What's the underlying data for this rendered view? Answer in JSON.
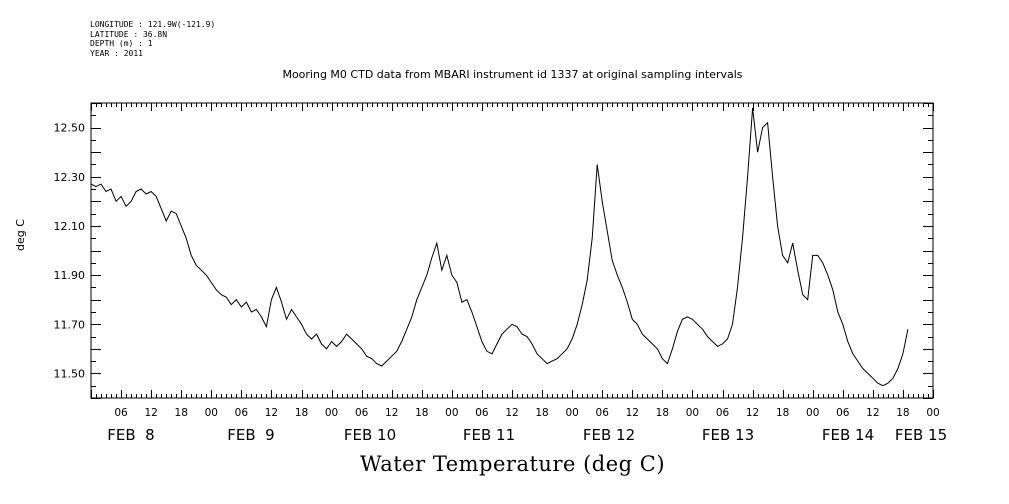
{
  "header": {
    "lines": [
      "LONGITUDE : 121.9W(-121.9)",
      "LATITUDE : 36.8N",
      "DEPTH (m) : 1",
      "YEAR : 2011"
    ]
  },
  "chart_data": {
    "type": "line",
    "title": "Mooring M0 CTD data from MBARI instrument id 1337 at original sampling intervals",
    "xlabel": "Water Temperature (deg C)",
    "ylabel": "deg C",
    "ylim": [
      11.4,
      12.6
    ],
    "xlim_hours": [
      0,
      168
    ],
    "grid": false,
    "y_ticks": [
      "11.50",
      "11.70",
      "11.90",
      "12.10",
      "12.30",
      "12.50"
    ],
    "x_hour_ticks": [
      "06",
      "12",
      "18",
      "00",
      "06",
      "12",
      "18",
      "00",
      "06",
      "12",
      "18",
      "00",
      "06",
      "12",
      "18",
      "00",
      "06",
      "12",
      "18",
      "00",
      "06",
      "12",
      "18",
      "00",
      "06",
      "12",
      "18",
      "00"
    ],
    "day_labels": [
      "FEB  8",
      "FEB  9",
      "FEB 10",
      "FEB 11",
      "FEB 12",
      "FEB 13",
      "FEB 14",
      "FEB 15"
    ],
    "series": [
      {
        "values": [
          [
            0,
            12.27
          ],
          [
            1,
            12.26
          ],
          [
            2,
            12.27
          ],
          [
            3,
            12.24
          ],
          [
            4,
            12.25
          ],
          [
            5,
            12.2
          ],
          [
            6,
            12.22
          ],
          [
            7,
            12.18
          ],
          [
            8,
            12.2
          ],
          [
            9,
            12.24
          ],
          [
            10,
            12.25
          ],
          [
            11,
            12.23
          ],
          [
            12,
            12.24
          ],
          [
            13,
            12.22
          ],
          [
            14,
            12.17
          ],
          [
            15,
            12.12
          ],
          [
            16,
            12.16
          ],
          [
            17,
            12.15
          ],
          [
            18,
            12.1
          ],
          [
            19,
            12.05
          ],
          [
            20,
            11.98
          ],
          [
            21,
            11.94
          ],
          [
            22,
            11.92
          ],
          [
            23,
            11.9
          ],
          [
            24,
            11.87
          ],
          [
            25,
            11.84
          ],
          [
            26,
            11.82
          ],
          [
            27,
            11.81
          ],
          [
            28,
            11.78
          ],
          [
            29,
            11.8
          ],
          [
            30,
            11.77
          ],
          [
            31,
            11.79
          ],
          [
            32,
            11.75
          ],
          [
            33,
            11.76
          ],
          [
            34,
            11.73
          ],
          [
            35,
            11.69
          ],
          [
            36,
            11.8
          ],
          [
            37,
            11.85
          ],
          [
            38,
            11.79
          ],
          [
            39,
            11.72
          ],
          [
            40,
            11.76
          ],
          [
            41,
            11.73
          ],
          [
            42,
            11.7
          ],
          [
            43,
            11.66
          ],
          [
            44,
            11.64
          ],
          [
            45,
            11.66
          ],
          [
            46,
            11.62
          ],
          [
            47,
            11.6
          ],
          [
            48,
            11.63
          ],
          [
            49,
            11.61
          ],
          [
            50,
            11.63
          ],
          [
            51,
            11.66
          ],
          [
            52,
            11.64
          ],
          [
            53,
            11.62
          ],
          [
            54,
            11.6
          ],
          [
            55,
            11.57
          ],
          [
            56,
            11.56
          ],
          [
            57,
            11.54
          ],
          [
            58,
            11.53
          ],
          [
            59,
            11.55
          ],
          [
            60,
            11.57
          ],
          [
            61,
            11.59
          ],
          [
            62,
            11.63
          ],
          [
            63,
            11.68
          ],
          [
            64,
            11.73
          ],
          [
            65,
            11.8
          ],
          [
            66,
            11.85
          ],
          [
            67,
            11.9
          ],
          [
            68,
            11.97
          ],
          [
            69,
            12.03
          ],
          [
            70,
            11.92
          ],
          [
            71,
            11.98
          ],
          [
            72,
            11.9
          ],
          [
            73,
            11.87
          ],
          [
            74,
            11.79
          ],
          [
            75,
            11.8
          ],
          [
            76,
            11.75
          ],
          [
            77,
            11.69
          ],
          [
            78,
            11.63
          ],
          [
            79,
            11.59
          ],
          [
            80,
            11.58
          ],
          [
            81,
            11.62
          ],
          [
            82,
            11.66
          ],
          [
            83,
            11.68
          ],
          [
            84,
            11.7
          ],
          [
            85,
            11.69
          ],
          [
            86,
            11.66
          ],
          [
            87,
            11.65
          ],
          [
            88,
            11.62
          ],
          [
            89,
            11.58
          ],
          [
            90,
            11.56
          ],
          [
            91,
            11.54
          ],
          [
            92,
            11.55
          ],
          [
            93,
            11.56
          ],
          [
            94,
            11.58
          ],
          [
            95,
            11.6
          ],
          [
            96,
            11.64
          ],
          [
            97,
            11.7
          ],
          [
            98,
            11.78
          ],
          [
            99,
            11.88
          ],
          [
            100,
            12.05
          ],
          [
            101,
            12.35
          ],
          [
            102,
            12.2
          ],
          [
            103,
            12.08
          ],
          [
            104,
            11.96
          ],
          [
            105,
            11.9
          ],
          [
            106,
            11.85
          ],
          [
            107,
            11.79
          ],
          [
            108,
            11.72
          ],
          [
            109,
            11.7
          ],
          [
            110,
            11.66
          ],
          [
            111,
            11.64
          ],
          [
            112,
            11.62
          ],
          [
            113,
            11.6
          ],
          [
            114,
            11.56
          ],
          [
            115,
            11.54
          ],
          [
            116,
            11.6
          ],
          [
            117,
            11.67
          ],
          [
            118,
            11.72
          ],
          [
            119,
            11.73
          ],
          [
            120,
            11.72
          ],
          [
            121,
            11.7
          ],
          [
            122,
            11.68
          ],
          [
            123,
            11.65
          ],
          [
            124,
            11.63
          ],
          [
            125,
            11.61
          ],
          [
            126,
            11.62
          ],
          [
            127,
            11.64
          ],
          [
            128,
            11.7
          ],
          [
            129,
            11.85
          ],
          [
            130,
            12.05
          ],
          [
            131,
            12.3
          ],
          [
            132,
            12.58
          ],
          [
            133,
            12.4
          ],
          [
            134,
            12.5
          ],
          [
            135,
            12.52
          ],
          [
            136,
            12.3
          ],
          [
            137,
            12.1
          ],
          [
            138,
            11.98
          ],
          [
            139,
            11.95
          ],
          [
            140,
            12.03
          ],
          [
            141,
            11.92
          ],
          [
            142,
            11.82
          ],
          [
            143,
            11.8
          ],
          [
            144,
            11.98
          ],
          [
            145,
            11.98
          ],
          [
            146,
            11.95
          ],
          [
            147,
            11.9
          ],
          [
            148,
            11.84
          ],
          [
            149,
            11.75
          ],
          [
            150,
            11.7
          ],
          [
            151,
            11.63
          ],
          [
            152,
            11.58
          ],
          [
            153,
            11.55
          ],
          [
            154,
            11.52
          ],
          [
            155,
            11.5
          ],
          [
            156,
            11.48
          ],
          [
            157,
            11.46
          ],
          [
            158,
            11.45
          ],
          [
            159,
            11.46
          ],
          [
            160,
            11.48
          ],
          [
            161,
            11.52
          ],
          [
            162,
            11.58
          ],
          [
            163,
            11.68
          ]
        ]
      }
    ]
  }
}
